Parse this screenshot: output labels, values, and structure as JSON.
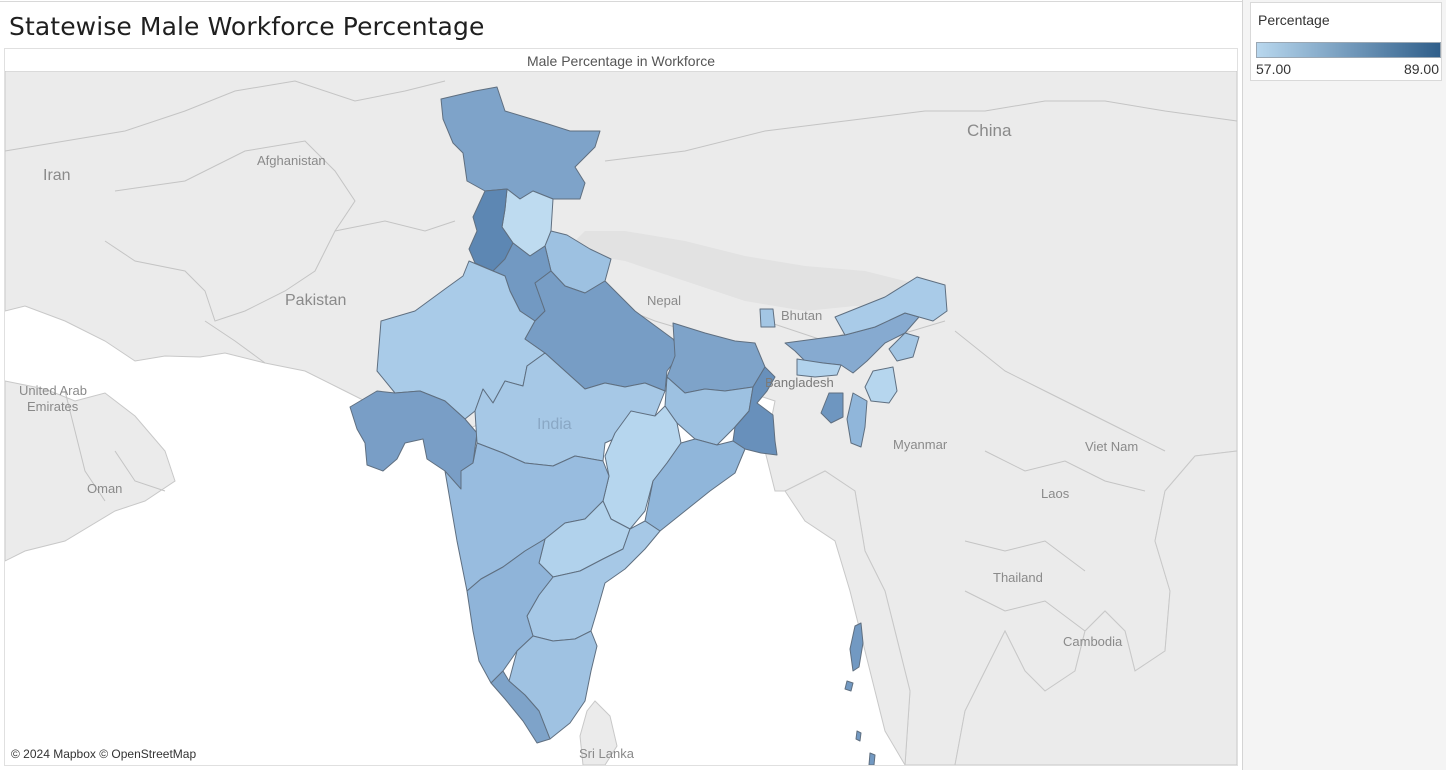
{
  "dashboard": {
    "title": "Statewise Male Workforce Percentage",
    "sheet_title": "Male Percentage in Workforce"
  },
  "legend": {
    "title": "Percentage",
    "min_label": "57.00",
    "max_label": "89.00",
    "min_value": 57,
    "max_value": 89,
    "min_color": "#b8d7ee",
    "max_color": "#2f5e8a"
  },
  "map": {
    "attribution": "© 2024 Mapbox © OpenStreetMap",
    "land_color": "#ebebeb",
    "water_color": "#ffffff",
    "border_color": "#c6c6c6",
    "region_labels": {
      "iran": "Iran",
      "afghanistan": "Afghanistan",
      "pakistan": "Pakistan",
      "china": "China",
      "nepal": "Nepal",
      "bhutan": "Bhutan",
      "bangladesh": "Bangladesh",
      "india": "India",
      "uae_line1": "United Arab",
      "uae_line2": "Emirates",
      "oman": "Oman",
      "myanmar": "Myanmar",
      "vietnam": "Viet Nam",
      "laos": "Laos",
      "thailand": "Thailand",
      "cambodia": "Cambodia",
      "srilanka": "Sri Lanka"
    },
    "state_colors": {
      "jammu-kashmir": "#7ea3c9",
      "himachal-pradesh": "#bedbf0",
      "punjab": "#5d87b3",
      "uttarakhand": "#9dc1e1",
      "haryana-delhi": "#7299c2",
      "rajasthan": "#a9cbe8",
      "gujarat": "#799ec6",
      "uttar-pradesh": "#779dc5",
      "madhya-pradesh": "#a6c8e6",
      "bihar": "#7ea3c9",
      "jharkhand": "#9dc1e1",
      "west-bengal": "#6890bb",
      "chhattisgarh": "#b6d6ee",
      "odisha": "#90b6da",
      "maharashtra": "#98bcdf",
      "telangana": "#b1d2ec",
      "andhra-pradesh": "#a6c8e6",
      "karnataka": "#8fb4d9",
      "tamil-nadu": "#9fc2e2",
      "kerala": "#7ea3c9",
      "sikkim": "#a3c6e4",
      "assam": "#86aad0",
      "arunachal-pradesh": "#a9cbe8",
      "meghalaya": "#b1d2ec",
      "nagaland": "#a3c6e4",
      "manipur": "#b6d6ee",
      "mizoram": "#90b6da",
      "tripura": "#6e96c0",
      "andaman-nicobar": "#7299c2"
    }
  }
}
